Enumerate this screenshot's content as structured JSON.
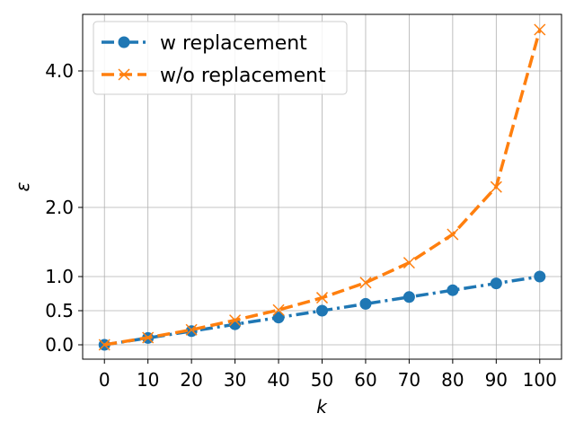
{
  "chart_data": {
    "type": "line",
    "title": "",
    "xlabel": "k",
    "ylabel": "ε",
    "x": [
      0,
      10,
      20,
      30,
      40,
      50,
      60,
      70,
      80,
      90,
      100
    ],
    "xticks": [
      "0",
      "10",
      "20",
      "30",
      "40",
      "50",
      "60",
      "70",
      "80",
      "90",
      "100"
    ],
    "yticks": [
      {
        "value": 0.0,
        "label": "0.0"
      },
      {
        "value": 0.5,
        "label": "0.5"
      },
      {
        "value": 1.0,
        "label": "1.0"
      },
      {
        "value": 2.0,
        "label": "2.0"
      },
      {
        "value": 4.0,
        "label": "4.0"
      }
    ],
    "yscale": "nonlinear (compressed above 1.0)",
    "grid": true,
    "legend_position": "top-left",
    "series": [
      {
        "name": "w replacement",
        "values": [
          0.0,
          0.1,
          0.2,
          0.3,
          0.4,
          0.5,
          0.6,
          0.7,
          0.8,
          0.9,
          1.0
        ],
        "color": "#1f77b4",
        "linestyle": "dash-dot",
        "marker": "circle"
      },
      {
        "name": "w/o replacement",
        "values": [
          0.0,
          0.105,
          0.22,
          0.36,
          0.51,
          0.69,
          0.91,
          1.2,
          1.61,
          2.3,
          4.6
        ],
        "color": "#ff7f0e",
        "linestyle": "dashed",
        "marker": "x"
      }
    ]
  }
}
